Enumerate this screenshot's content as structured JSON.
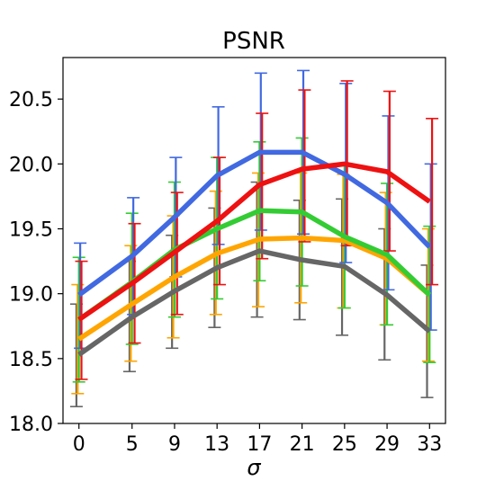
{
  "chart_data": {
    "type": "line",
    "title": "PSNR",
    "xlabel": "σ",
    "ylabel": "",
    "x": [
      0,
      5,
      9,
      13,
      17,
      21,
      25,
      29,
      33
    ],
    "x_ticks": [
      "0",
      "5",
      "9",
      "13",
      "17",
      "21",
      "25",
      "29",
      "33"
    ],
    "y_ticks": [
      "18.0",
      "18.5",
      "19.0",
      "19.5",
      "20.0",
      "20.5"
    ],
    "xlim": [
      -1.5,
      34.5
    ],
    "ylim": [
      18.0,
      20.82
    ],
    "grid": false,
    "legend": "none",
    "error_bars": true,
    "series": [
      {
        "color": "#666666",
        "values": [
          18.53,
          18.82,
          19.02,
          19.2,
          19.33,
          19.26,
          19.21,
          18.99,
          18.71
        ],
        "upper": [
          18.92,
          19.25,
          19.45,
          19.66,
          19.86,
          19.72,
          19.73,
          19.5,
          19.22
        ],
        "lower": [
          18.13,
          18.4,
          18.58,
          18.74,
          18.82,
          18.8,
          18.68,
          18.49,
          18.2
        ]
      },
      {
        "color": "#ffa500",
        "values": [
          18.65,
          18.92,
          19.13,
          19.31,
          19.42,
          19.43,
          19.41,
          19.27,
          18.99
        ],
        "upper": [
          19.07,
          19.37,
          19.6,
          19.79,
          19.93,
          19.93,
          19.92,
          19.78,
          19.5
        ],
        "lower": [
          18.23,
          18.48,
          18.66,
          18.84,
          18.9,
          18.93,
          18.89,
          18.76,
          18.48
        ]
      },
      {
        "color": "#33cc33",
        "values": [
          18.8,
          19.09,
          19.34,
          19.5,
          19.64,
          19.63,
          19.44,
          19.3,
          18.99
        ],
        "upper": [
          19.28,
          19.62,
          19.86,
          20.05,
          20.17,
          20.2,
          20.0,
          19.85,
          19.52
        ],
        "lower": [
          18.32,
          18.61,
          18.82,
          18.96,
          19.1,
          19.06,
          18.89,
          18.76,
          18.47
        ]
      },
      {
        "color": "#4169e1",
        "values": [
          18.99,
          19.29,
          19.59,
          19.91,
          20.09,
          20.09,
          19.92,
          19.7,
          19.36
        ],
        "upper": [
          19.39,
          19.74,
          20.05,
          20.44,
          20.7,
          20.72,
          20.62,
          20.37,
          20.0
        ],
        "lower": [
          18.58,
          18.84,
          19.13,
          19.38,
          19.49,
          19.46,
          19.24,
          19.03,
          18.72
        ]
      },
      {
        "color": "#ee1111",
        "values": [
          18.8,
          19.08,
          19.32,
          19.56,
          19.84,
          19.96,
          20.0,
          19.94,
          19.71
        ],
        "upper": [
          19.25,
          19.54,
          19.78,
          20.05,
          20.39,
          20.57,
          20.64,
          20.56,
          20.35
        ],
        "lower": [
          18.34,
          18.62,
          18.84,
          19.07,
          19.27,
          19.4,
          19.37,
          19.33,
          19.07
        ]
      }
    ]
  }
}
